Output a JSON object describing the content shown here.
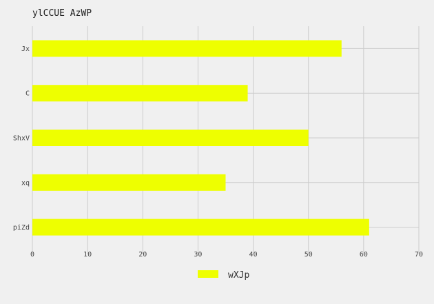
{
  "chart_data": {
    "type": "bar",
    "orientation": "horizontal",
    "title": "ylCCUE AzWP",
    "categories": [
      "Jx",
      "C",
      "ShxV",
      "xq",
      "piZd"
    ],
    "series": [
      {
        "name": "wXJp",
        "values": [
          56,
          39,
          50,
          35,
          61
        ]
      }
    ],
    "xlim": [
      0,
      70
    ],
    "xticks": [
      0,
      10,
      20,
      30,
      40,
      50,
      60,
      70
    ],
    "grid": true,
    "legend_position": "bottom-center",
    "bar_color": "#eeff00",
    "grid_color": "#cccccc",
    "background_color": "#f0f0f0"
  }
}
